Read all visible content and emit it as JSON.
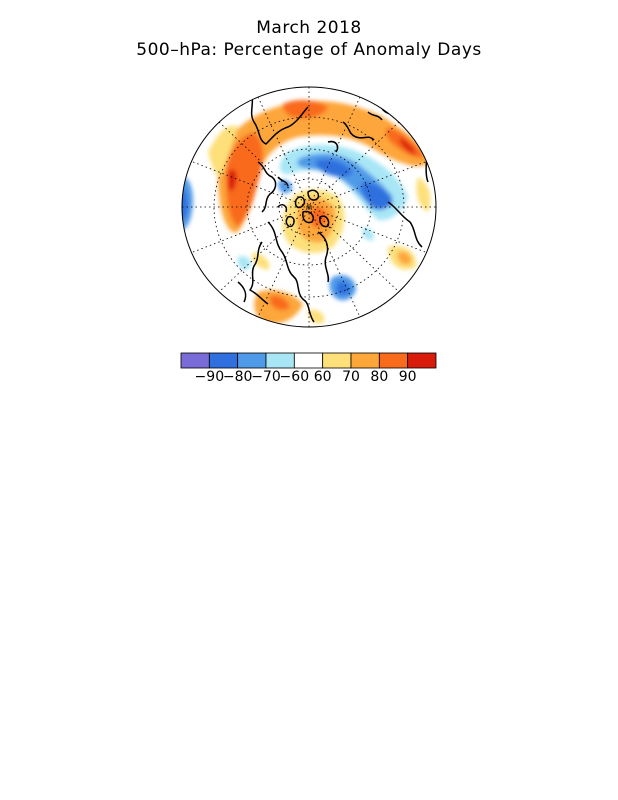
{
  "title": "March 2018",
  "subtitle": "500–hPa: Percentage of Anomaly Days",
  "colorbar": {
    "colors": [
      "#7a6cd8",
      "#2f6fde",
      "#4f9ae8",
      "#a8e6f6",
      "#ffffff",
      "#fde07a",
      "#fda63a",
      "#f96b1c",
      "#d91b0c"
    ],
    "labels": [
      "−90",
      "−80",
      "−70",
      "−60",
      "60",
      "70",
      "80",
      "90"
    ]
  }
}
